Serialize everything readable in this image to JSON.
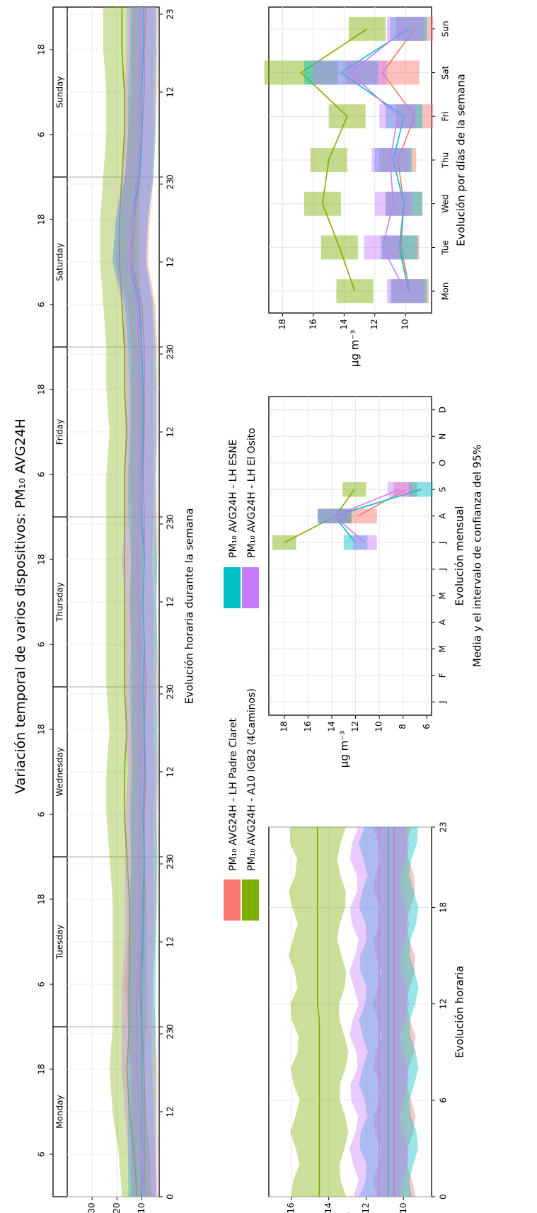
{
  "title": "Variación temporal de varios dispositivos: PM₁₀ AVG24H",
  "legend": [
    {
      "label": "PM₁₀ AVG24H - LH Padre Claret",
      "color": "#F8766D"
    },
    {
      "label": "PM₁₀ AVG24H - A10 IGB2 (4Caminos)",
      "color": "#7CAE00"
    },
    {
      "label": "PM₁₀ AVG24H - LH ESNE",
      "color": "#00BFC4"
    },
    {
      "label": "PM₁₀ AVG24H - LH El Osito",
      "color": "#C77CFF"
    }
  ],
  "chart_data": [
    {
      "id": "weekday-hour",
      "type": "area",
      "xlabel": "Evolución horaria durante la semana",
      "ylabel": "µg m⁻³",
      "ylim": [
        3,
        40
      ],
      "yticks": [
        10,
        20,
        30
      ],
      "days": [
        "Monday",
        "Tuesday",
        "Wednesday",
        "Thursday",
        "Friday",
        "Saturday",
        "Sunday"
      ],
      "hour_ticks": [
        0,
        6,
        12,
        18,
        23
      ],
      "series": [
        {
          "name": "PM₁₀ AVG24H - LH Padre Claret",
          "color": "#F8766D",
          "values": [
            9,
            9,
            9,
            9,
            10,
            11,
            10,
            9,
            9,
            9,
            8.5,
            9,
            8.5,
            9,
            9.5,
            9,
            9,
            9.5,
            9,
            9,
            9,
            10,
            14,
            13,
            11,
            10,
            9,
            9,
            8.5
          ]
        },
        {
          "name": "PM₁₀ AVG24H - A10 IGB2 (4Caminos)",
          "color": "#7CAE00",
          "values": [
            12,
            13,
            15,
            16,
            15,
            15,
            15,
            15,
            16,
            17,
            17,
            16,
            17,
            17,
            17,
            17,
            17,
            17,
            16,
            17,
            17,
            18,
            19,
            19,
            18,
            17,
            17,
            18,
            18
          ]
        },
        {
          "name": "PM₁₀ AVG24H - LH ESNE",
          "color": "#00BFC4",
          "values": [
            10,
            10,
            10,
            10,
            10,
            10,
            9.5,
            9.5,
            9,
            9.5,
            9,
            9,
            9.5,
            9,
            9.5,
            9,
            10,
            10,
            9.5,
            9.5,
            10,
            11,
            15,
            14,
            11,
            10,
            10,
            9.5,
            9.5
          ]
        },
        {
          "name": "PM₁₀ AVG24H - LH El Osito",
          "color": "#C77CFF",
          "values": [
            9,
            10,
            11,
            12,
            12,
            12,
            11,
            11,
            11,
            11,
            10,
            11,
            11,
            11,
            11,
            12,
            11,
            11,
            11,
            11,
            11,
            12,
            15,
            14,
            12,
            11,
            11,
            10.5,
            10.5
          ]
        }
      ]
    },
    {
      "id": "hour",
      "type": "area",
      "xlabel": "Evolución horaria",
      "ylabel": "µg m⁻³",
      "xlim": [
        0,
        23
      ],
      "ylim": [
        8.5,
        17.2
      ],
      "xticks": [
        0,
        6,
        12,
        18,
        23
      ],
      "yticks": [
        10,
        12,
        14,
        16
      ],
      "series": [
        {
          "name": "PM₁₀ AVG24H - LH Padre Claret",
          "color": "#F8766D",
          "values": [
            10.5,
            10.5,
            10.5,
            10.5,
            10.5,
            10.5,
            10.5,
            10.5,
            10.5,
            10.5,
            10.5,
            10.5,
            10.5,
            10.5,
            10.5,
            10.5,
            10.5,
            10.5,
            10.5,
            10.5,
            10.5,
            10.5,
            10.5,
            10.5
          ]
        },
        {
          "name": "PM₁₀ AVG24H - A10 IGB2 (4Caminos)",
          "color": "#7CAE00",
          "values": [
            14.5,
            14.5,
            14.5,
            14.5,
            14.5,
            14.5,
            14.5,
            14.5,
            14.5,
            14.5,
            14.5,
            14.5,
            14.6,
            14.6,
            14.6,
            14.6,
            14.6,
            14.6,
            14.6,
            14.6,
            14.6,
            14.6,
            14.6,
            14.6
          ]
        },
        {
          "name": "PM₁₀ AVG24H - LH ESNE",
          "color": "#00BFC4",
          "values": [
            10.8,
            10.8,
            10.8,
            10.8,
            10.8,
            10.8,
            10.8,
            10.8,
            10.8,
            10.8,
            10.8,
            10.8,
            10.8,
            10.8,
            10.8,
            10.8,
            10.8,
            10.8,
            10.8,
            10.8,
            10.8,
            10.8,
            10.8,
            10.8
          ]
        },
        {
          "name": "PM₁₀ AVG24H - LH El Osito",
          "color": "#C77CFF",
          "values": [
            11.3,
            11.3,
            11.3,
            11.3,
            11.3,
            11.3,
            11.3,
            11.3,
            11.3,
            11.3,
            11.3,
            11.3,
            11.3,
            11.3,
            11.3,
            11.3,
            11.3,
            11.3,
            11.3,
            11.3,
            11.3,
            11.3,
            11.3,
            11.3
          ]
        }
      ]
    },
    {
      "id": "month",
      "type": "line",
      "xlabel": "Evolución mensual",
      "xlabel2": "Media y el intervalo de confianza del 95%",
      "ylabel": "µg m⁻³",
      "ylim": [
        5.6,
        19.3
      ],
      "yticks": [
        6,
        8,
        10,
        12,
        14,
        16,
        18
      ],
      "categories": [
        "J",
        "F",
        "M",
        "A",
        "M",
        "J",
        "J",
        "A",
        "S",
        "O",
        "N",
        "D"
      ],
      "series": [
        {
          "name": "PM₁₀ AVG24H - LH Padre Claret",
          "color": "#F8766D",
          "values": [
            null,
            null,
            null,
            null,
            null,
            null,
            null,
            11.8,
            7.8,
            null,
            null,
            null
          ],
          "ci": [
            null,
            null,
            null,
            null,
            null,
            null,
            null,
            1.6,
            1.0,
            null,
            null,
            null
          ]
        },
        {
          "name": "PM₁₀ AVG24H - A10 IGB2 (4Caminos)",
          "color": "#7CAE00",
          "values": [
            null,
            null,
            null,
            null,
            null,
            null,
            18,
            13.7,
            12.1,
            null,
            null,
            null
          ],
          "ci": [
            null,
            null,
            null,
            null,
            null,
            null,
            1.0,
            1.4,
            1.0,
            null,
            null,
            null
          ]
        },
        {
          "name": "PM₁₀ AVG24H - LH ESNE",
          "color": "#00BFC4",
          "values": [
            null,
            null,
            null,
            null,
            null,
            null,
            12,
            13.8,
            6.5,
            null,
            null,
            null
          ],
          "ci": [
            null,
            null,
            null,
            null,
            null,
            null,
            1.0,
            1.4,
            1.0,
            null,
            null,
            null
          ]
        },
        {
          "name": "PM₁₀ AVG24H - LH El Osito",
          "color": "#C77CFF",
          "values": [
            null,
            null,
            null,
            null,
            null,
            null,
            11.2,
            13.8,
            8.3,
            null,
            null,
            null
          ],
          "ci": [
            null,
            null,
            null,
            null,
            null,
            null,
            1.0,
            1.4,
            1.0,
            null,
            null,
            null
          ]
        }
      ]
    },
    {
      "id": "weekday",
      "type": "line",
      "xlabel": "Evolución por días de la semana",
      "ylabel": "µg m⁻³",
      "ylim": [
        8.3,
        18.9
      ],
      "yticks": [
        10,
        12,
        14,
        16,
        18
      ],
      "categories": [
        "Mon",
        "Tue",
        "Wed",
        "Thu",
        "Fri",
        "Sat",
        "Sun"
      ],
      "series": [
        {
          "name": "PM₁₀ AVG24H - LH Padre Claret",
          "color": "#F8766D",
          "values": [
            9.7,
            10.3,
            10.1,
            10.5,
            9.4,
            11.5,
            9.4
          ],
          "ci": [
            1.2,
            1.2,
            1.2,
            1.2,
            1.2,
            2.4,
            1.2
          ]
        },
        {
          "name": "PM₁₀ AVG24H - A10 IGB2 (4Caminos)",
          "color": "#7CAE00",
          "values": [
            13.3,
            14.3,
            15.4,
            15.0,
            13.8,
            16.8,
            12.5
          ],
          "ci": [
            1.2,
            1.2,
            1.2,
            1.2,
            1.2,
            2.4,
            1.2
          ]
        },
        {
          "name": "PM₁₀ AVG24H - LH ESNE",
          "color": "#00BFC4",
          "values": [
            9.8,
            10.4,
            10.1,
            10.8,
            10.1,
            14.2,
            9.8
          ],
          "ci": [
            1.2,
            1.2,
            1.2,
            1.2,
            1.2,
            2.4,
            1.2
          ]
        },
        {
          "name": "PM₁₀ AVG24H - LH El Osito",
          "color": "#C77CFF",
          "values": [
            10.0,
            11.5,
            10.8,
            11.0,
            10.5,
            13.6,
            10.0
          ],
          "ci": [
            1.2,
            1.2,
            1.2,
            1.2,
            1.2,
            2.4,
            1.2
          ]
        }
      ]
    }
  ]
}
